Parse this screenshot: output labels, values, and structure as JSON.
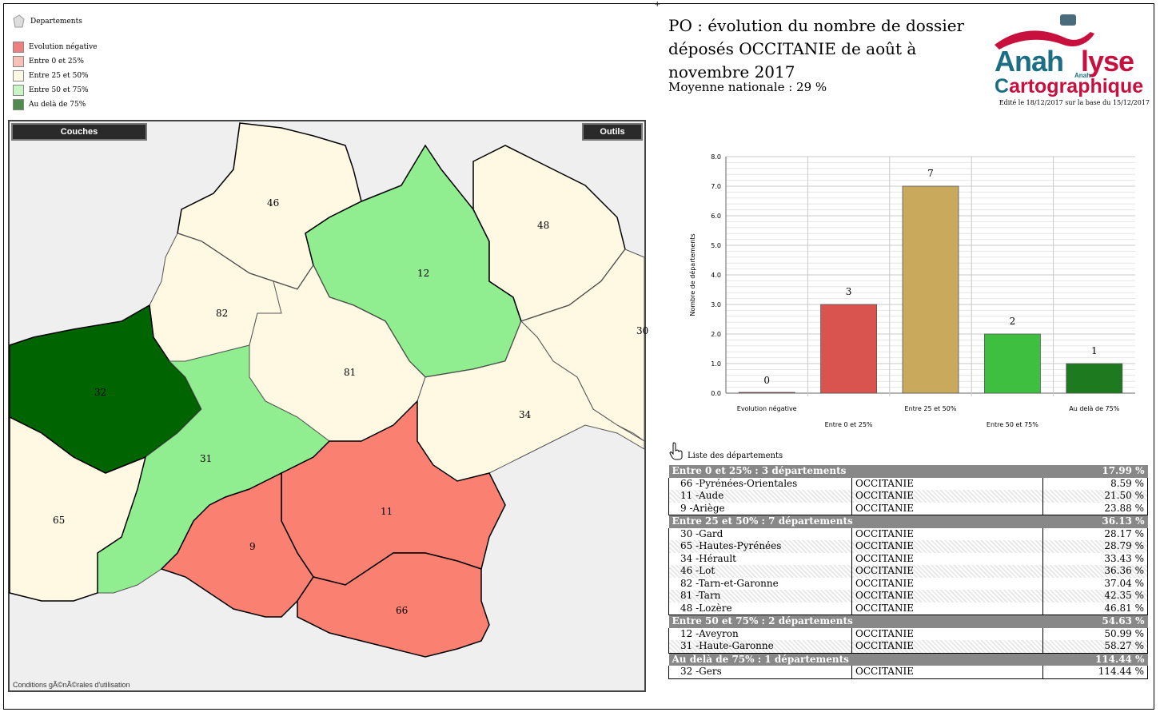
{
  "legend": {
    "title": "Departements",
    "items": [
      {
        "label": "Evolution négative",
        "color": "#f08080"
      },
      {
        "label": "Entre 0 et 25%",
        "color": "#f7c1b8"
      },
      {
        "label": "Entre 25 et 50%",
        "color": "#fff8e2"
      },
      {
        "label": "Entre 50 et 75%",
        "color": "#c9f5c4"
      },
      {
        "label": "Au delà de 75%",
        "color": "#4f8a4f"
      }
    ]
  },
  "map": {
    "couches_label": "Couches",
    "outils_label": "Outils",
    "footer": "Conditions gÃ©nÃ©rales d'utilisation",
    "departments": [
      {
        "code": "46",
        "color": "#fff8e2"
      },
      {
        "code": "12",
        "color": "#90ee90"
      },
      {
        "code": "48",
        "color": "#fff8e2"
      },
      {
        "code": "82",
        "color": "#fff8e2"
      },
      {
        "code": "30",
        "color": "#fff8e2"
      },
      {
        "code": "81",
        "color": "#fff8e2"
      },
      {
        "code": "32",
        "color": "#006400"
      },
      {
        "code": "34",
        "color": "#fff8e2"
      },
      {
        "code": "31",
        "color": "#90ee90"
      },
      {
        "code": "11",
        "color": "#fa8072"
      },
      {
        "code": "65",
        "color": "#fff8e2"
      },
      {
        "code": "9",
        "color": "#fa8072"
      },
      {
        "code": "66",
        "color": "#fa8072"
      }
    ]
  },
  "title": {
    "main": "PO : évolution du nombre de dossier déposés OCCITANIE de août à novembre 2017",
    "subtitle": "Moyenne nationale : 29 %"
  },
  "logo": {
    "part1": "Anah",
    "part2": "lyse",
    "small": "Anah",
    "carto_c": "C",
    "carto_rest": "artographique",
    "edit_note": "Edité le 18/12/2017 sur la base du 15/12/2017"
  },
  "chart_data": {
    "type": "bar",
    "categories": [
      "Evolution négative",
      "Entre 0 et 25%",
      "Entre 25 et 50%",
      "Entre 50 et 75%",
      "Au delà de 75%"
    ],
    "values": [
      0,
      3,
      7,
      2,
      1
    ],
    "colors": [
      "#c0392b",
      "#d9534f",
      "#c9a95c",
      "#3fbf3f",
      "#1e7a1e"
    ],
    "ylabel": "Nombre de départements",
    "xlabel": "",
    "ylim": [
      0,
      8
    ],
    "yticks": [
      "0.0",
      "1.0",
      "2.0",
      "3.0",
      "4.0",
      "5.0",
      "6.0",
      "7.0",
      "8.0"
    ],
    "grid": true
  },
  "list": {
    "header": "Liste des départements",
    "groups": [
      {
        "title": "Entre 0 et 25% : 3 départements",
        "total": "17.99 %",
        "rows": [
          {
            "name": "66 -Pyrénées-Orientales",
            "region": "OCCITANIE",
            "value": "8.59 %"
          },
          {
            "name": "11 -Aude",
            "region": "OCCITANIE",
            "value": "21.50 %"
          },
          {
            "name": "9 -Ariège",
            "region": "OCCITANIE",
            "value": "23.88 %"
          }
        ]
      },
      {
        "title": "Entre 25 et 50% : 7 départements",
        "total": "36.13 %",
        "rows": [
          {
            "name": "30 -Gard",
            "region": "OCCITANIE",
            "value": "28.17 %"
          },
          {
            "name": "65 -Hautes-Pyrénées",
            "region": "OCCITANIE",
            "value": "28.79 %"
          },
          {
            "name": "34 -Hérault",
            "region": "OCCITANIE",
            "value": "33.43 %"
          },
          {
            "name": "46 -Lot",
            "region": "OCCITANIE",
            "value": "36.36 %"
          },
          {
            "name": "82 -Tarn-et-Garonne",
            "region": "OCCITANIE",
            "value": "37.04 %"
          },
          {
            "name": "81 -Tarn",
            "region": "OCCITANIE",
            "value": "42.35 %"
          },
          {
            "name": "48 -Lozère",
            "region": "OCCITANIE",
            "value": "46.81 %"
          }
        ]
      },
      {
        "title": "Entre 50 et 75% : 2 départements",
        "total": "54.63 %",
        "rows": [
          {
            "name": "12 -Aveyron",
            "region": "OCCITANIE",
            "value": "50.99 %"
          },
          {
            "name": "31 -Haute-Garonne",
            "region": "OCCITANIE",
            "value": "58.27 %"
          }
        ]
      },
      {
        "title": "Au delà de 75% : 1 départements",
        "total": "114.44 %",
        "rows": [
          {
            "name": "32 -Gers",
            "region": "OCCITANIE",
            "value": "114.44 %"
          }
        ]
      }
    ]
  }
}
